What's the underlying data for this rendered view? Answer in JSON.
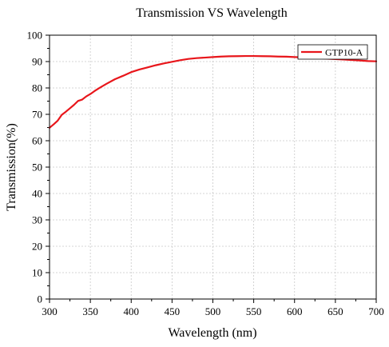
{
  "chart_data": {
    "type": "line",
    "title": "Transmission VS Wavelength",
    "xlabel": "Wavelength (nm)",
    "ylabel": "Transmission(%)",
    "xlim": [
      300,
      700
    ],
    "ylim": [
      0,
      100
    ],
    "x_ticks": [
      300,
      350,
      400,
      450,
      500,
      550,
      600,
      650,
      700
    ],
    "y_ticks": [
      0,
      10,
      20,
      30,
      40,
      50,
      60,
      70,
      80,
      90,
      100
    ],
    "grid": true,
    "legend_position": "top-right",
    "series": [
      {
        "name": "GTP10-A",
        "color": "#e8161b",
        "x": [
          300,
          305,
          310,
          315,
          320,
          325,
          330,
          335,
          340,
          345,
          350,
          355,
          360,
          370,
          380,
          390,
          400,
          410,
          420,
          430,
          440,
          450,
          460,
          470,
          480,
          490,
          500,
          510,
          520,
          530,
          540,
          550,
          560,
          570,
          580,
          590,
          600,
          610,
          620,
          630,
          640,
          650,
          660,
          670,
          680,
          690,
          700
        ],
        "y": [
          64.9,
          66.2,
          67.6,
          69.8,
          71.0,
          72.3,
          73.6,
          75.1,
          75.6,
          76.8,
          77.7,
          78.8,
          79.8,
          81.6,
          83.3,
          84.6,
          86.0,
          87.0,
          87.8,
          88.6,
          89.3,
          89.9,
          90.5,
          91.0,
          91.3,
          91.5,
          91.7,
          91.9,
          92.0,
          92.05,
          92.1,
          92.1,
          92.05,
          92.0,
          91.9,
          91.85,
          91.7,
          91.6,
          91.5,
          91.3,
          91.1,
          90.95,
          90.8,
          90.6,
          90.4,
          90.2,
          90.1
        ]
      }
    ]
  }
}
